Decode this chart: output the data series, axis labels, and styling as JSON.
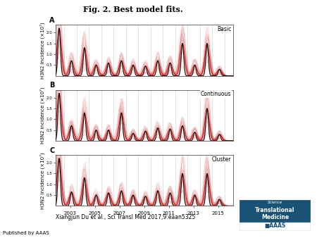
{
  "title": "Fig. 2. Best model fits.",
  "title_fontsize": 8,
  "panels": [
    "A",
    "B",
    "C"
  ],
  "panel_labels": [
    "Basic",
    "Continuous",
    "Cluster"
  ],
  "ylabel": "H3N2 incidence (×10⁷)",
  "ylabel_fontsize": 5.0,
  "xlabel_ticks": [
    2003,
    2005,
    2007,
    2009,
    2011,
    2013,
    2015
  ],
  "xlabel_tick_labels": [
    "2003",
    "2005",
    "2007",
    "2009",
    "2011",
    "2013",
    "2015"
  ],
  "yticks": [
    0.5,
    1.0,
    1.5,
    2.0
  ],
  "ylim": [
    0,
    2.35
  ],
  "xlim_start": 2001.8,
  "xlim_end": 2016.2,
  "vline_years": [
    2002.5,
    2003.5,
    2004.5,
    2005.5,
    2006.5,
    2007.5,
    2008.5,
    2009.5,
    2010.5,
    2011.5,
    2012.5,
    2013.5,
    2014.5,
    2015.5
  ],
  "season_peak_times": [
    2002.1,
    2003.1,
    2004.15,
    2005.1,
    2006.1,
    2007.15,
    2008.1,
    2009.1,
    2010.1,
    2011.1,
    2012.1,
    2013.1,
    2014.1,
    2015.1
  ],
  "peak_heights_A": [
    2.2,
    0.7,
    1.3,
    0.5,
    0.6,
    0.7,
    0.5,
    0.45,
    0.7,
    0.6,
    1.5,
    0.5,
    1.5,
    0.3
  ],
  "peak_heights_B": [
    2.2,
    0.7,
    1.3,
    0.5,
    0.5,
    1.3,
    0.35,
    0.45,
    0.6,
    0.55,
    0.7,
    0.4,
    1.5,
    0.3
  ],
  "peak_heights_C": [
    2.2,
    0.65,
    1.3,
    0.5,
    0.6,
    0.7,
    0.5,
    0.45,
    0.7,
    0.6,
    1.5,
    0.5,
    1.5,
    0.3
  ],
  "data_color": "#111111",
  "model_color": "#cc0000",
  "envelope_alpha": 0.12,
  "sim_alpha": 0.08,
  "n_simulations": 80,
  "background_color": "white",
  "citation": "Xiangjun Du et al., Sci Transl Med 2017;9:eaan5325",
  "citation_fontsize": 5.5,
  "published_text": "Published by AAAS",
  "published_fontsize": 5,
  "logo_bg": "#1a5276",
  "logo_white": "#ffffff"
}
